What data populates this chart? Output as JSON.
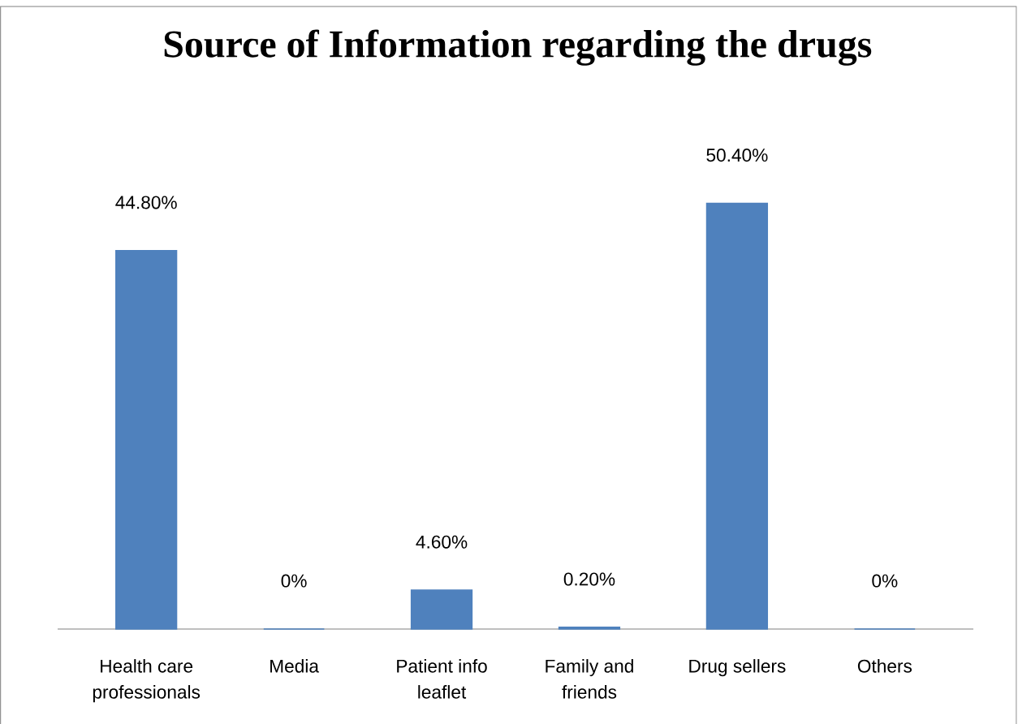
{
  "chart_data": {
    "type": "bar",
    "title": "Source of Information regarding the drugs",
    "categories": [
      "Health care professionals",
      "Media",
      "Patient info leaflet",
      "Family and friends",
      "Drug sellers",
      "Others"
    ],
    "values": [
      44.8,
      0,
      4.6,
      0.2,
      50.4,
      0
    ],
    "value_labels": [
      "44.80%",
      "0%",
      "4.60%",
      "0.20%",
      "50.40%",
      "0%"
    ],
    "color": "#4f81bd"
  }
}
